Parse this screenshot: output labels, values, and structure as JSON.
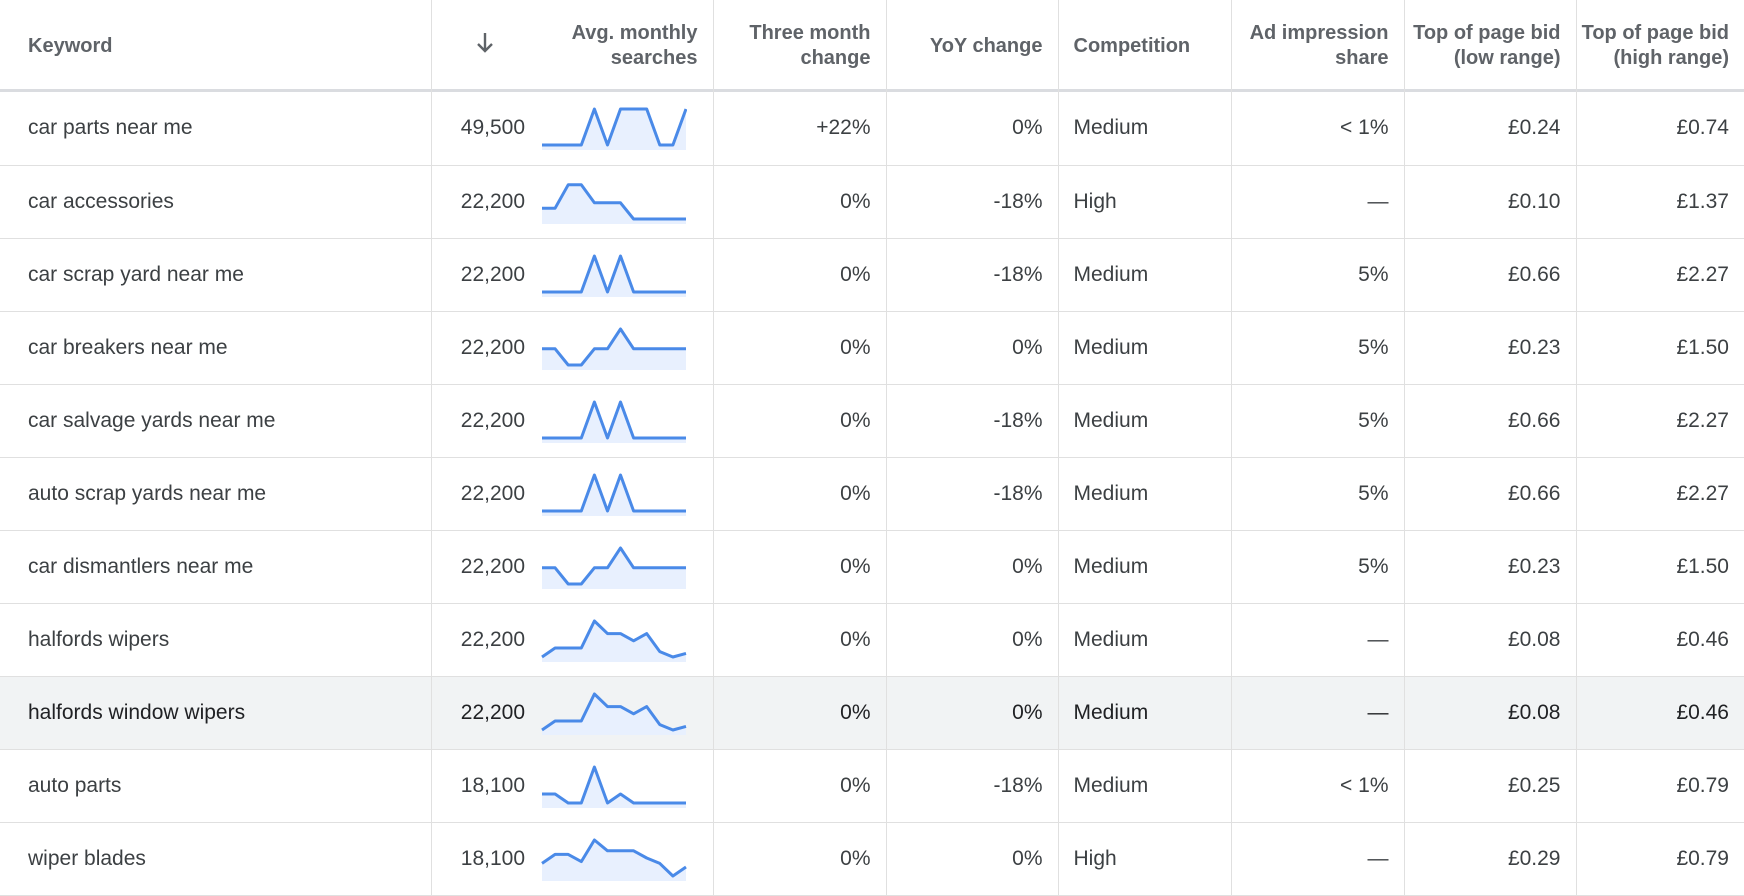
{
  "columns": {
    "keyword": "Keyword",
    "avg_monthly": "Avg. monthly searches",
    "three_month": "Three month change",
    "yoy": "YoY change",
    "competition": "Competition",
    "ad_share": "Ad impression share",
    "bid_low": "Top of page bid (low range)",
    "bid_high": "Top of page bid (high range)",
    "sort_icon": "arrow-down-icon"
  },
  "colors": {
    "spark_line": "#4a8ae8",
    "spark_fill": "#e8f0fe",
    "highlight_row": "#f1f3f4"
  },
  "rows": [
    {
      "keyword": "car parts near me",
      "avg": "49,500",
      "trend": [
        0,
        0,
        0,
        0,
        1,
        0,
        1,
        1,
        1,
        0,
        0,
        1
      ],
      "three_month": "+22%",
      "yoy": "0%",
      "competition": "Medium",
      "ad_share": "< 1%",
      "bid_low": "£0.24",
      "bid_high": "£0.74"
    },
    {
      "keyword": "car accessories",
      "avg": "22,200",
      "trend": [
        0.3,
        0.3,
        0.95,
        0.95,
        0.45,
        0.45,
        0.45,
        0,
        0,
        0,
        0,
        0
      ],
      "three_month": "0%",
      "yoy": "-18%",
      "competition": "High",
      "ad_share": "—",
      "bid_low": "£0.10",
      "bid_high": "£1.37"
    },
    {
      "keyword": "car scrap yard near me",
      "avg": "22,200",
      "trend": [
        0,
        0,
        0,
        0,
        1,
        0,
        1,
        0,
        0,
        0,
        0,
        0
      ],
      "three_month": "0%",
      "yoy": "-18%",
      "competition": "Medium",
      "ad_share": "5%",
      "bid_low": "£0.66",
      "bid_high": "£2.27"
    },
    {
      "keyword": "car breakers near me",
      "avg": "22,200",
      "trend": [
        0.45,
        0.45,
        0,
        0,
        0.45,
        0.45,
        1,
        0.45,
        0.45,
        0.45,
        0.45,
        0.45
      ],
      "three_month": "0%",
      "yoy": "0%",
      "competition": "Medium",
      "ad_share": "5%",
      "bid_low": "£0.23",
      "bid_high": "£1.50"
    },
    {
      "keyword": "car salvage yards near me",
      "avg": "22,200",
      "trend": [
        0,
        0,
        0,
        0,
        1,
        0,
        1,
        0,
        0,
        0,
        0,
        0
      ],
      "three_month": "0%",
      "yoy": "-18%",
      "competition": "Medium",
      "ad_share": "5%",
      "bid_low": "£0.66",
      "bid_high": "£2.27"
    },
    {
      "keyword": "auto scrap yards near me",
      "avg": "22,200",
      "trend": [
        0,
        0,
        0,
        0,
        1,
        0,
        1,
        0,
        0,
        0,
        0,
        0
      ],
      "three_month": "0%",
      "yoy": "-18%",
      "competition": "Medium",
      "ad_share": "5%",
      "bid_low": "£0.66",
      "bid_high": "£2.27"
    },
    {
      "keyword": "car dismantlers near me",
      "avg": "22,200",
      "trend": [
        0.45,
        0.45,
        0,
        0,
        0.45,
        0.45,
        1,
        0.45,
        0.45,
        0.45,
        0.45,
        0.45
      ],
      "three_month": "0%",
      "yoy": "0%",
      "competition": "Medium",
      "ad_share": "5%",
      "bid_low": "£0.23",
      "bid_high": "£1.50"
    },
    {
      "keyword": "halfords wipers",
      "avg": "22,200",
      "trend": [
        0,
        0.25,
        0.25,
        0.25,
        1,
        0.65,
        0.65,
        0.45,
        0.65,
        0.15,
        0,
        0.1
      ],
      "three_month": "0%",
      "yoy": "0%",
      "competition": "Medium",
      "ad_share": "—",
      "bid_low": "£0.08",
      "bid_high": "£0.46"
    },
    {
      "keyword": "halfords window wipers",
      "avg": "22,200",
      "trend": [
        0,
        0.25,
        0.25,
        0.25,
        1,
        0.65,
        0.65,
        0.45,
        0.65,
        0.15,
        0,
        0.1
      ],
      "three_month": "0%",
      "yoy": "0%",
      "competition": "Medium",
      "ad_share": "—",
      "bid_low": "£0.08",
      "bid_high": "£0.46",
      "highlight": true
    },
    {
      "keyword": "auto parts",
      "avg": "18,100",
      "trend": [
        0.25,
        0.25,
        0,
        0,
        1,
        0,
        0.25,
        0,
        0,
        0,
        0,
        0
      ],
      "three_month": "0%",
      "yoy": "-18%",
      "competition": "Medium",
      "ad_share": "< 1%",
      "bid_low": "£0.25",
      "bid_high": "£0.79"
    },
    {
      "keyword": "wiper blades",
      "avg": "18,100",
      "trend": [
        0.35,
        0.6,
        0.6,
        0.4,
        1,
        0.7,
        0.7,
        0.7,
        0.5,
        0.35,
        0,
        0.25
      ],
      "three_month": "0%",
      "yoy": "0%",
      "competition": "High",
      "ad_share": "—",
      "bid_low": "£0.29",
      "bid_high": "£0.79"
    }
  ]
}
